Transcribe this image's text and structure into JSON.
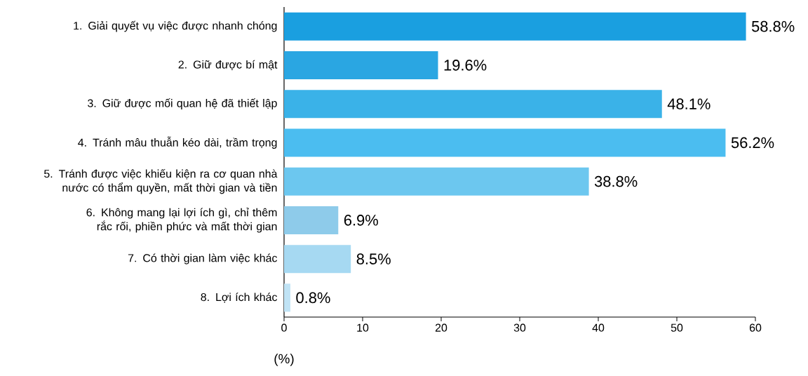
{
  "chart_data": {
    "type": "bar",
    "orientation": "horizontal",
    "xlabel": "(%)",
    "categories": [
      "1. Giải quyết vụ việc được nhanh chóng",
      "2. Giữ được bí mật",
      "3. Giữ được mối quan hệ đã thiết lập",
      "4. Tránh mâu thuẫn kéo dài, trầm trọng",
      "5. Tránh được việc khiếu kiện ra cơ quan nhà nước có thẩm quyền, mất thời gian và tiền",
      "6. Không mang lại lợi ích gì, chỉ thêm rắc rối, phiền phức và mất thời gian",
      "7. Có thời gian làm việc khác",
      "8. Lợi ích khác"
    ],
    "values": [
      58.8,
      19.6,
      48.1,
      56.2,
      38.8,
      6.9,
      8.5,
      0.8
    ],
    "value_labels": [
      "58.8%",
      "19.6%",
      "48.1%",
      "56.2%",
      "38.8%",
      "6.9%",
      "8.5%",
      "0.8%"
    ],
    "colors": [
      "#1a9fe0",
      "#2aa6e2",
      "#3ab2e8",
      "#4bbdf0",
      "#6cc7ef",
      "#8ecbea",
      "#a6d9f2",
      "#c0e3f5"
    ],
    "xlim": [
      0,
      60
    ],
    "xticks": [
      0,
      10,
      20,
      30,
      40,
      50,
      60
    ],
    "grid": false
  }
}
